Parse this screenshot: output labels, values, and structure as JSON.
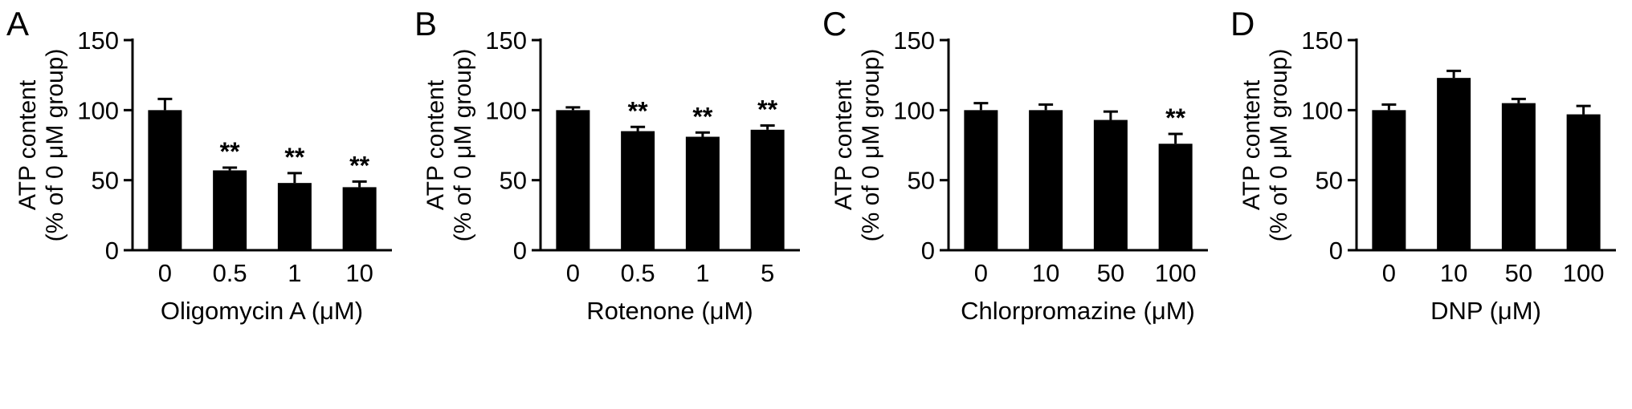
{
  "figure": {
    "background": "#ffffff",
    "bar_color": "#000000",
    "panels": [
      "A",
      "B",
      "C",
      "D"
    ]
  },
  "chart_data": [
    {
      "type": "bar",
      "panel": "A",
      "title": "",
      "xlabel": "Oligomycin A (μM)",
      "ylabel": "ATP content (% of 0 μM group)",
      "ylabel_lines": [
        "ATP content",
        "(% of 0 μM group)"
      ],
      "categories": [
        "0",
        "0.5",
        "1",
        "10"
      ],
      "values": [
        100,
        57,
        48,
        45
      ],
      "errors": [
        8,
        2,
        7,
        4
      ],
      "significance": [
        "",
        "**",
        "**",
        "**"
      ],
      "ylim": [
        0,
        150
      ],
      "yticks": [
        0,
        50,
        100,
        150
      ],
      "bar_color": "#000000",
      "grid": false,
      "legend": false
    },
    {
      "type": "bar",
      "panel": "B",
      "title": "",
      "xlabel": "Rotenone (μM)",
      "ylabel": "ATP content (% of 0 μM group)",
      "ylabel_lines": [
        "ATP content",
        "(% of 0 μM group)"
      ],
      "categories": [
        "0",
        "0.5",
        "1",
        "5"
      ],
      "values": [
        100,
        85,
        81,
        86
      ],
      "errors": [
        2,
        3,
        3,
        3
      ],
      "significance": [
        "",
        "**",
        "**",
        "**"
      ],
      "ylim": [
        0,
        150
      ],
      "yticks": [
        0,
        50,
        100,
        150
      ],
      "bar_color": "#000000",
      "grid": false,
      "legend": false
    },
    {
      "type": "bar",
      "panel": "C",
      "title": "",
      "xlabel": "Chlorpromazine (μM)",
      "ylabel": "ATP content (% of 0 μM group)",
      "ylabel_lines": [
        "ATP content",
        "(% of 0 μM group)"
      ],
      "categories": [
        "0",
        "10",
        "50",
        "100"
      ],
      "values": [
        100,
        100,
        93,
        76
      ],
      "errors": [
        5,
        4,
        6,
        7
      ],
      "significance": [
        "",
        "",
        "",
        "**"
      ],
      "ylim": [
        0,
        150
      ],
      "yticks": [
        0,
        50,
        100,
        150
      ],
      "bar_color": "#000000",
      "grid": false,
      "legend": false
    },
    {
      "type": "bar",
      "panel": "D",
      "title": "",
      "xlabel": "DNP (μM)",
      "ylabel": "ATP content (% of 0 μM group)",
      "ylabel_lines": [
        "ATP content",
        "(% of 0 μM group)"
      ],
      "categories": [
        "0",
        "10",
        "50",
        "100"
      ],
      "values": [
        100,
        123,
        105,
        97
      ],
      "errors": [
        4,
        5,
        3,
        6
      ],
      "significance": [
        "",
        "",
        "",
        ""
      ],
      "ylim": [
        0,
        150
      ],
      "yticks": [
        0,
        50,
        100,
        150
      ],
      "bar_color": "#000000",
      "grid": false,
      "legend": false
    }
  ]
}
